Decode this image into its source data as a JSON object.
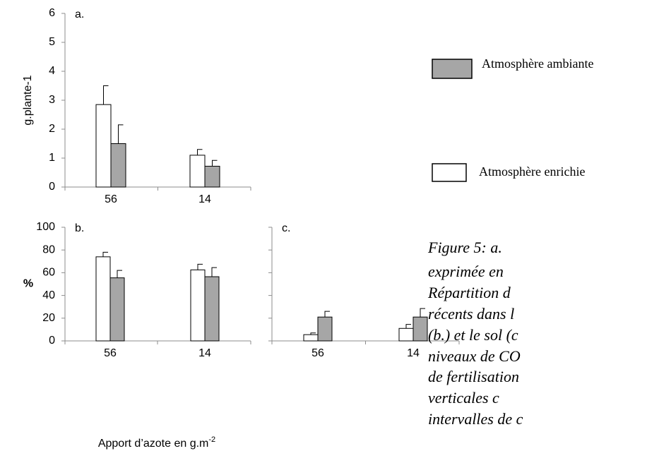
{
  "chart_data": [
    {
      "type": "bar",
      "title": "a.",
      "ylabel": "g.plante-1",
      "categories": [
        "56",
        "14"
      ],
      "series": [
        {
          "name": "Atmosphère enrichie",
          "color": "#ffffff",
          "values": [
            2.85,
            1.1
          ],
          "errors": [
            0.65,
            0.2
          ]
        },
        {
          "name": "Atmosphère ambiante",
          "color": "#a6a6a6",
          "values": [
            1.5,
            0.72
          ],
          "errors": [
            0.65,
            0.2
          ]
        }
      ],
      "ylim": [
        0,
        6
      ],
      "yticks": [
        0,
        1,
        2,
        3,
        4,
        5,
        6
      ]
    },
    {
      "type": "bar",
      "title": "b.",
      "ylabel": "%",
      "xlabel": "Apport d’azote en g.m",
      "xlabel_superscript": "-2",
      "categories": [
        "56",
        "14"
      ],
      "series": [
        {
          "color": "#ffffff",
          "values": [
            74,
            62.5
          ],
          "errors": [
            4,
            5
          ]
        },
        {
          "color": "#a6a6a6",
          "values": [
            55.5,
            56.5
          ],
          "errors": [
            6.5,
            8
          ]
        }
      ],
      "ylim": [
        0,
        100
      ],
      "yticks": [
        0,
        20,
        40,
        60,
        80,
        100
      ]
    },
    {
      "type": "bar",
      "title": "c.",
      "categories": [
        "56",
        "14"
      ],
      "series": [
        {
          "color": "#ffffff",
          "values": [
            5.5,
            11
          ],
          "errors": [
            1.5,
            3.5
          ]
        },
        {
          "color": "#a6a6a6",
          "values": [
            21,
            21
          ],
          "errors": [
            5,
            7.5
          ]
        }
      ],
      "ylim": [
        0,
        100
      ],
      "yticks": [
        0,
        20,
        40,
        60,
        80,
        100
      ],
      "tick_labels": false
    }
  ],
  "caption": [
    "Figure 5: a.",
    "exprimée en",
    "Répartition d",
    "récents dans l",
    "(b.) et le sol (c",
    "niveaux de CO",
    "de fertilisation",
    "verticales c",
    "intervalles de c"
  ]
}
